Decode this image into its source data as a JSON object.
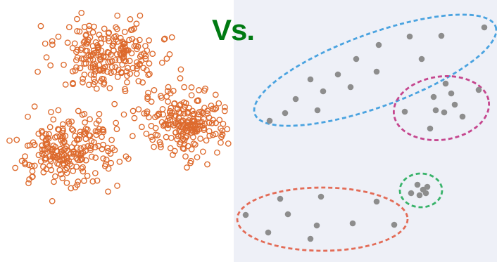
{
  "title": {
    "vs_text": "Vs."
  },
  "colors": {
    "vs_text": "#007a12",
    "raw_point_stroke": "#dd6a2d",
    "clustered_point_fill": "#8d8d8d",
    "right_background": "#eef0f7",
    "cluster_blue": "#4aa3e0",
    "cluster_magenta": "#c5468e",
    "cluster_green": "#38b36a",
    "cluster_red": "#e36c57"
  },
  "left_panel": {
    "description_type": "unclustered-scatter",
    "blob_count": 3,
    "marker": "hollow-circle"
  },
  "right_panel": {
    "description_type": "clustered-scatter",
    "marker": "filled-circle",
    "cluster_count": 4,
    "cluster_names": [
      "blue",
      "magenta",
      "green",
      "red"
    ]
  }
}
